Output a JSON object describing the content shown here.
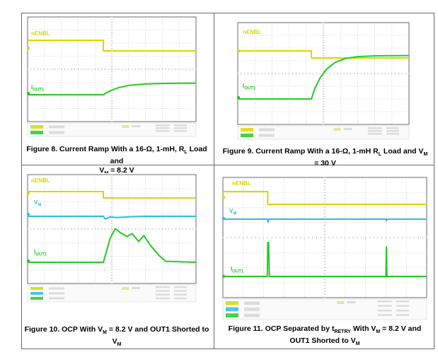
{
  "colors": {
    "grid": "#b8b8b8",
    "axis": "#6a6a6a",
    "enbl": "#d8d800",
    "current": "#22cc22",
    "vm": "#33bbdd",
    "readout": "#dcdcdc"
  },
  "chart_data": [
    {
      "type": "line",
      "title": "Figure 8. Current Ramp With a 16-Ω, 1-mH, R_L Load and V_M = 8.2 V",
      "series": [
        {
          "name": "nENBL",
          "color": "#d8d800",
          "x": [
            0,
            4.5,
            4.5,
            10
          ],
          "y": [
            1.0,
            1.0,
            0.0,
            0.0
          ]
        },
        {
          "name": "I_OUT1",
          "color": "#22cc22",
          "x": [
            0,
            4.5,
            4.7,
            5.0,
            5.4,
            6.0,
            7.0,
            8.0,
            10
          ],
          "y": [
            0,
            0,
            0.08,
            0.16,
            0.25,
            0.33,
            0.38,
            0.4,
            0.41
          ]
        }
      ]
    },
    {
      "type": "line",
      "title": "Figure 9. Current Ramp With a 16-Ω, 1-mH R_L Load and V_M = 30 V",
      "series": [
        {
          "name": "nENBL",
          "color": "#d8d800",
          "x": [
            0,
            4.3,
            4.3,
            10
          ],
          "y": [
            1.0,
            1.0,
            0.0,
            0.0
          ]
        },
        {
          "name": "I_OUT1",
          "color": "#22cc22",
          "x": [
            0,
            4.3,
            4.5,
            4.8,
            5.2,
            5.7,
            6.3,
            7.0,
            8.0,
            10
          ],
          "y": [
            0,
            0,
            0.4,
            0.8,
            1.15,
            1.4,
            1.55,
            1.62,
            1.65,
            1.66
          ]
        }
      ]
    },
    {
      "type": "line",
      "title": "Figure 10. OCP With V_M = 8.2 V and OUT1 Shorted to V_M",
      "series": [
        {
          "name": "nENBL",
          "color": "#d8d800",
          "x": [
            0,
            4.5,
            4.5,
            10
          ],
          "y": [
            1.0,
            1.0,
            0.0,
            0.0
          ]
        },
        {
          "name": "V_M",
          "color": "#33bbdd",
          "x": [
            0,
            4.5,
            4.6,
            4.9,
            5.3,
            6.0,
            7.0,
            10
          ],
          "y": [
            0,
            0,
            -0.25,
            -0.05,
            -0.12,
            -0.05,
            0,
            0
          ]
        },
        {
          "name": "I_OUT1",
          "color": "#22cc22",
          "x": [
            0,
            4.5,
            4.9,
            5.2,
            5.5,
            5.9,
            6.2,
            6.6,
            6.9,
            7.3,
            7.8,
            8.2,
            10
          ],
          "y": [
            0,
            0,
            1.2,
            1.7,
            1.5,
            1.3,
            1.45,
            1.05,
            1.35,
            0.85,
            0.35,
            0.05,
            0
          ]
        }
      ]
    },
    {
      "type": "line",
      "title": "Figure 11. OCP Separated by t_RETRY With V_M = 8.2 V and OUT1 Shorted to V_M",
      "series": [
        {
          "name": "nENBL",
          "color": "#d8d800",
          "x": [
            0,
            2.2,
            2.2,
            10
          ],
          "y": [
            1.0,
            1.0,
            0.0,
            0.0
          ]
        },
        {
          "name": "V_M",
          "color": "#33bbdd",
          "x": [
            0,
            2.2,
            2.22,
            2.26,
            8.0,
            8.02,
            8.06,
            10
          ],
          "y": [
            0,
            0,
            -0.3,
            0,
            0,
            -0.15,
            0,
            0
          ]
        },
        {
          "name": "I_OUT1",
          "color": "#22cc22",
          "x": [
            0,
            2.18,
            2.2,
            2.24,
            2.28,
            8.0,
            8.02,
            8.05,
            10
          ],
          "y": [
            0,
            0,
            3.0,
            3.0,
            0,
            0,
            2.6,
            0,
            0
          ]
        }
      ]
    }
  ],
  "panels": [
    {
      "labels": {
        "enbl": "nENBL",
        "current_main": "I",
        "current_sub": "OUT1"
      },
      "caption_parts": [
        "Figure 8. Current Ramp With a 16-Ω, 1-mH, R",
        "L",
        " Load and",
        "V",
        "M",
        " = 8.2 V"
      ]
    },
    {
      "labels": {
        "enbl": "nENBL",
        "current_main": "I",
        "current_sub": "OUT1"
      },
      "caption_parts": [
        "Figure 9. Current Ramp With a 16-Ω, 1-mH R",
        "L",
        " Load and V",
        "M",
        "= 30 V"
      ]
    },
    {
      "labels": {
        "enbl": "nENBL",
        "vm_main": "V",
        "vm_sub": "M",
        "current_main": "I",
        "current_sub": "OUT1"
      },
      "caption_parts": [
        "Figure 10. OCP With V",
        "M",
        " = 8.2 V and OUT1 Shorted to V",
        "M"
      ]
    },
    {
      "labels": {
        "enbl": "nENBL",
        "vm_main": "V",
        "vm_sub": "M",
        "current_main": "I",
        "current_sub": "OUT1"
      },
      "caption_parts": [
        "Figure 11. OCP Separated by t",
        "RETRY",
        " With V",
        "M",
        " = 8.2 V and",
        "OUT1 Shorted to V",
        "M"
      ]
    }
  ]
}
